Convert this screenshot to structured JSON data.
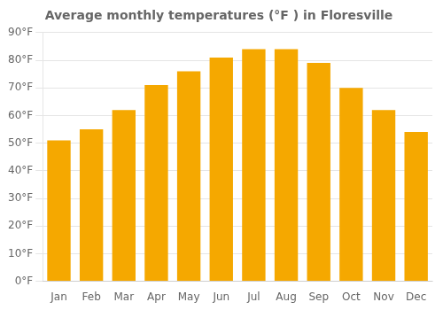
{
  "chart_data": {
    "type": "bar",
    "title": "Average monthly temperatures (°F ) in Floresville",
    "categories": [
      "Jan",
      "Feb",
      "Mar",
      "Apr",
      "May",
      "Jun",
      "Jul",
      "Aug",
      "Sep",
      "Oct",
      "Nov",
      "Dec"
    ],
    "values": [
      51,
      55,
      62,
      71,
      76,
      81,
      84,
      84,
      79,
      70,
      62,
      54
    ],
    "color": "#F5A800",
    "ylim": [
      0,
      90
    ],
    "yticks": [
      {
        "value": 0,
        "label": "0°F"
      },
      {
        "value": 10,
        "label": "10°F"
      },
      {
        "value": 20,
        "label": "20°F"
      },
      {
        "value": 30,
        "label": "30°F"
      },
      {
        "value": 40,
        "label": "40°F"
      },
      {
        "value": 50,
        "label": "50°F"
      },
      {
        "value": 60,
        "label": "60°F"
      },
      {
        "value": 70,
        "label": "70°F"
      },
      {
        "value": 80,
        "label": "80°F"
      },
      {
        "value": 90,
        "label": "90°F"
      }
    ],
    "grid": true
  }
}
